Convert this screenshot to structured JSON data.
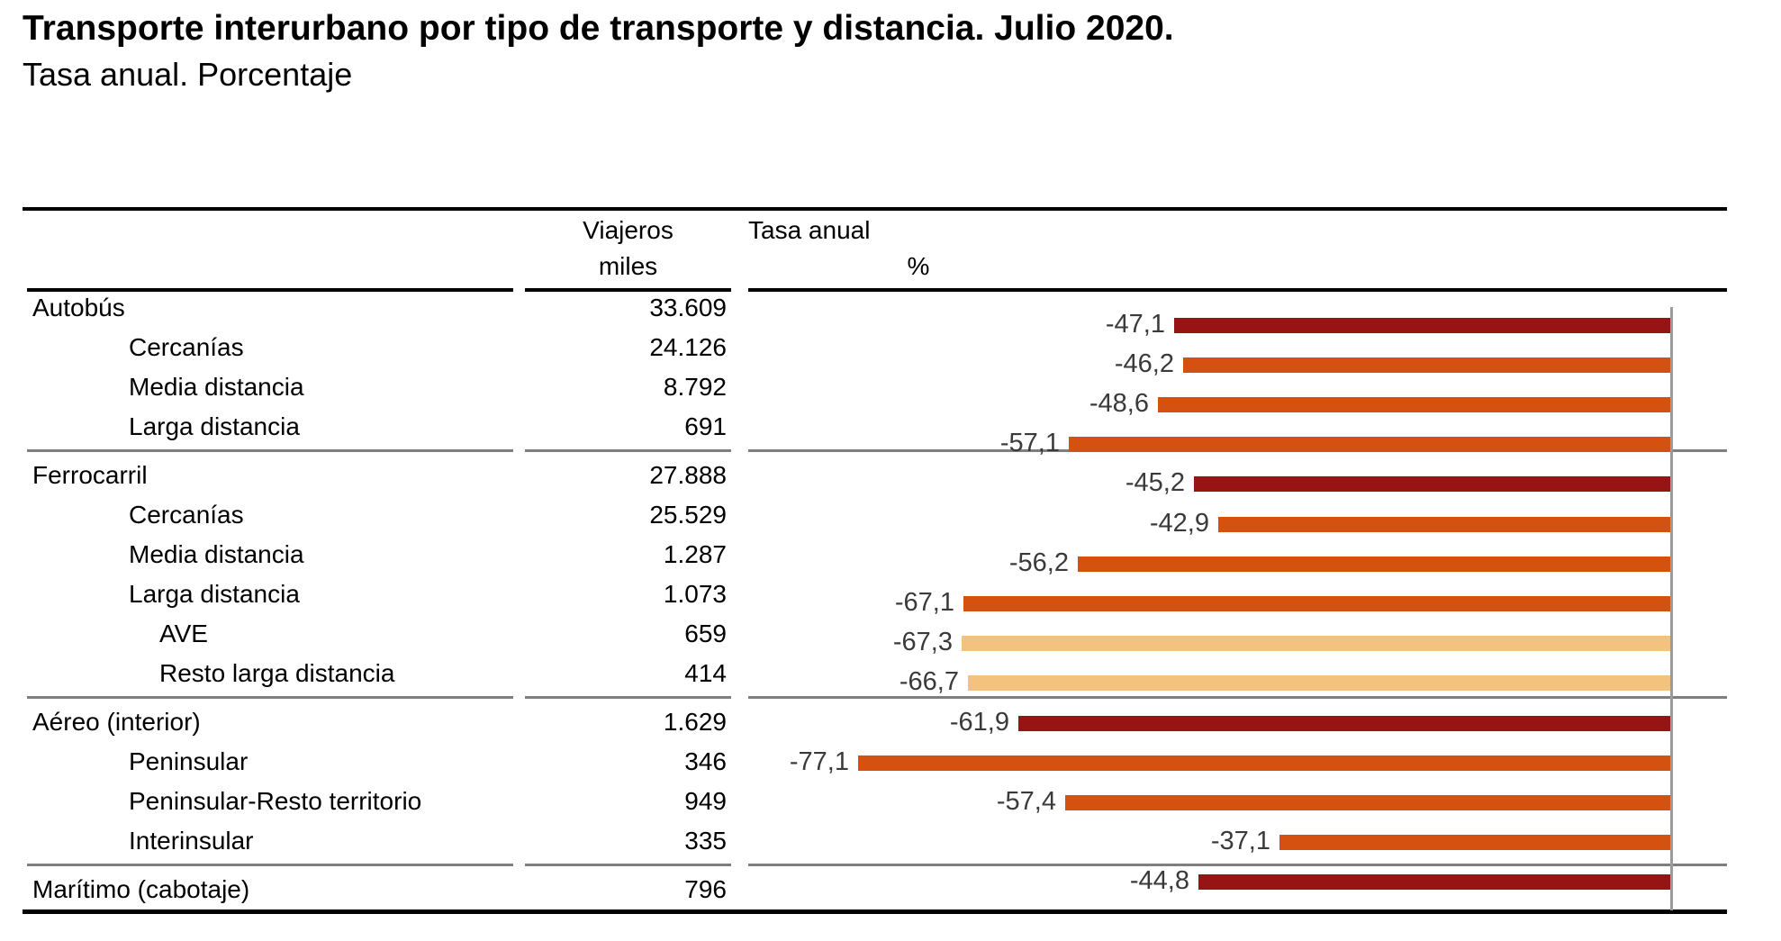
{
  "title": "Transporte interurbano por tipo de transporte y distancia. Julio 2020.",
  "subtitle": "Tasa anual. Porcentaje",
  "table": {
    "columns": {
      "travelers": {
        "line1": "Viajeros",
        "line2": "miles"
      },
      "rate": {
        "line1": "Tasa anual",
        "line2": "%"
      }
    }
  },
  "chart_data": {
    "type": "bar",
    "orientation": "horizontal",
    "title": "Transporte interurbano por tipo de transporte y distancia. Julio 2020.",
    "subtitle": "Tasa anual. Porcentaje",
    "value_unit": "%",
    "xlim": [
      -85,
      0
    ],
    "zero_axis_position": "right",
    "grid": false,
    "legend": false,
    "colors": {
      "dark_red": "#971414",
      "orange": "#D4510F",
      "tan": "#F3C27E"
    },
    "rows": [
      {
        "label": "Autobús",
        "indent": 0,
        "viajeros_miles": "33.609",
        "tasa_anual": -47.1,
        "tasa_anual_label": "-47,1",
        "color_key": "dark_red",
        "separator_after": false
      },
      {
        "label": "Cercanías",
        "indent": 1,
        "viajeros_miles": "24.126",
        "tasa_anual": -46.2,
        "tasa_anual_label": "-46,2",
        "color_key": "orange",
        "separator_after": false
      },
      {
        "label": "Media distancia",
        "indent": 1,
        "viajeros_miles": "8.792",
        "tasa_anual": -48.6,
        "tasa_anual_label": "-48,6",
        "color_key": "orange",
        "separator_after": false
      },
      {
        "label": "Larga distancia",
        "indent": 1,
        "viajeros_miles": "691",
        "tasa_anual": -57.1,
        "tasa_anual_label": "-57,1",
        "color_key": "orange",
        "separator_after": true
      },
      {
        "label": "Ferrocarril",
        "indent": 0,
        "viajeros_miles": "27.888",
        "tasa_anual": -45.2,
        "tasa_anual_label": "-45,2",
        "color_key": "dark_red",
        "separator_after": false
      },
      {
        "label": "Cercanías",
        "indent": 1,
        "viajeros_miles": "25.529",
        "tasa_anual": -42.9,
        "tasa_anual_label": "-42,9",
        "color_key": "orange",
        "separator_after": false
      },
      {
        "label": "Media distancia",
        "indent": 1,
        "viajeros_miles": "1.287",
        "tasa_anual": -56.2,
        "tasa_anual_label": "-56,2",
        "color_key": "orange",
        "separator_after": false
      },
      {
        "label": "Larga distancia",
        "indent": 1,
        "viajeros_miles": "1.073",
        "tasa_anual": -67.1,
        "tasa_anual_label": "-67,1",
        "color_key": "orange",
        "separator_after": false
      },
      {
        "label": "AVE",
        "indent": 2,
        "viajeros_miles": "659",
        "tasa_anual": -67.3,
        "tasa_anual_label": "-67,3",
        "color_key": "tan",
        "separator_after": false
      },
      {
        "label": "Resto larga distancia",
        "indent": 2,
        "viajeros_miles": "414",
        "tasa_anual": -66.7,
        "tasa_anual_label": "-66,7",
        "color_key": "tan",
        "separator_after": true
      },
      {
        "label": "Aéreo (interior)",
        "indent": 0,
        "viajeros_miles": "1.629",
        "tasa_anual": -61.9,
        "tasa_anual_label": "-61,9",
        "color_key": "dark_red",
        "separator_after": false
      },
      {
        "label": "Peninsular",
        "indent": 1,
        "viajeros_miles": "346",
        "tasa_anual": -77.1,
        "tasa_anual_label": "-77,1",
        "color_key": "orange",
        "separator_after": false
      },
      {
        "label": "Peninsular-Resto territorio",
        "indent": 1,
        "viajeros_miles": "949",
        "tasa_anual": -57.4,
        "tasa_anual_label": "-57,4",
        "color_key": "orange",
        "separator_after": false
      },
      {
        "label": "Interinsular",
        "indent": 1,
        "viajeros_miles": "335",
        "tasa_anual": -37.1,
        "tasa_anual_label": "-37,1",
        "color_key": "orange",
        "separator_after": true
      },
      {
        "label": "Marítimo (cabotaje)",
        "indent": 0,
        "viajeros_miles": "796",
        "tasa_anual": -44.8,
        "tasa_anual_label": "-44,8",
        "color_key": "dark_red",
        "separator_after": false
      }
    ]
  }
}
